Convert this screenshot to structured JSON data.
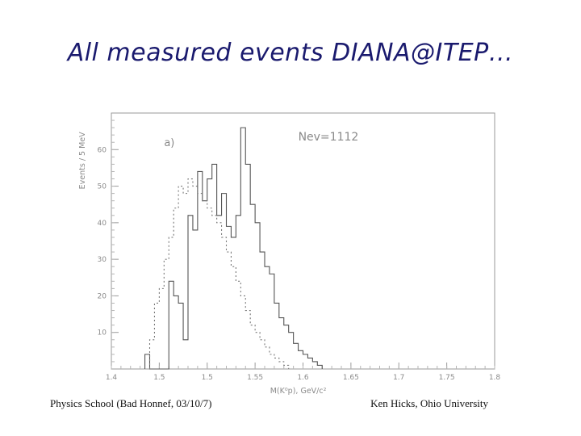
{
  "slide": {
    "title": "All measured events DIANA@ITEP…",
    "footer_left": "Physics School (Bad Honnef, 03/10/7)",
    "footer_right": "Ken Hicks, Ohio University"
  },
  "chart_data": {
    "type": "histogram",
    "panel_label": "a)",
    "annotation": "Nev=1112",
    "xlabel": "M(K⁰p), GeV/c²",
    "ylabel": "Events / 5 MeV",
    "xlim": [
      1.4,
      1.8
    ],
    "ylim": [
      0,
      70
    ],
    "xticks": [
      1.4,
      1.45,
      1.5,
      1.55,
      1.6,
      1.65,
      1.7,
      1.75,
      1.8
    ],
    "xtick_labels": [
      "1.4",
      "1.5",
      "1.5",
      "1.55",
      "1.6",
      "1.65",
      "1.7",
      "1.75",
      "1.8"
    ],
    "yticks": [
      10,
      20,
      30,
      40,
      50,
      60
    ],
    "bin_width": 0.005,
    "series": [
      {
        "style": "solid",
        "x_start": 1.435,
        "values": [
          4,
          0,
          0,
          0,
          0,
          24,
          20,
          18,
          8,
          42,
          38,
          54,
          46,
          52,
          56,
          42,
          48,
          39,
          36,
          42,
          66,
          56,
          45,
          40,
          32,
          28,
          26,
          18,
          14,
          12,
          10,
          7,
          5,
          4,
          3,
          2,
          1
        ]
      },
      {
        "style": "dotted",
        "x_start": 1.44,
        "values": [
          8,
          18,
          22,
          30,
          36,
          44,
          50,
          48,
          52,
          50,
          48,
          46,
          44,
          42,
          40,
          36,
          32,
          28,
          24,
          20,
          16,
          12,
          10,
          8,
          6,
          4,
          3,
          2,
          1
        ]
      }
    ]
  }
}
